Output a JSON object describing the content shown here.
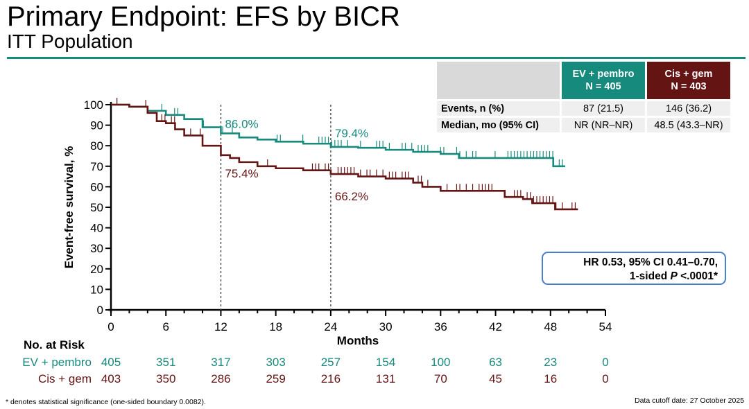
{
  "slide": {
    "title": "Primary Endpoint: EFS by BICR",
    "subtitle": "ITT Population"
  },
  "summary_table": {
    "columns": [
      {
        "label": "EV + pembro",
        "n": "N = 405",
        "color": "#178a7e"
      },
      {
        "label": "Cis + gem",
        "n": "N = 403",
        "color": "#651414"
      }
    ],
    "rows": [
      {
        "label": "Events, n (%)",
        "values": [
          "87 (21.5)",
          "146 (36.2)"
        ]
      },
      {
        "label": "Median, mo (95% CI)",
        "values": [
          "NR (NR–NR)",
          "48.5 (43.3–NR)"
        ]
      }
    ]
  },
  "hr_box": {
    "line1": "HR 0.53, 95% CI 0.41–0.70,",
    "line2_prefix": "1-sided ",
    "line2_p": "P",
    "line2_suffix": " <.0001*"
  },
  "chart_data": {
    "type": "line",
    "title": "Primary Endpoint: EFS by BICR",
    "xlabel": "Months",
    "ylabel": "Event-free survival, %",
    "xlim": [
      0,
      54
    ],
    "ylim": [
      0,
      100
    ],
    "xticks": [
      0,
      6,
      12,
      18,
      24,
      30,
      36,
      42,
      48,
      54
    ],
    "yticks": [
      0,
      10,
      20,
      30,
      40,
      50,
      60,
      70,
      80,
      90,
      100
    ],
    "reference_lines_x": [
      12,
      24
    ],
    "series": [
      {
        "name": "EV + pembro",
        "color": "#178a7e",
        "points": [
          [
            0,
            100
          ],
          [
            2,
            99
          ],
          [
            4,
            97
          ],
          [
            6,
            95
          ],
          [
            8,
            93
          ],
          [
            10,
            89
          ],
          [
            12,
            86
          ],
          [
            14,
            84
          ],
          [
            16,
            83
          ],
          [
            18,
            82
          ],
          [
            21,
            81
          ],
          [
            24,
            79.4
          ],
          [
            27,
            79
          ],
          [
            30,
            78
          ],
          [
            33,
            77
          ],
          [
            36,
            76
          ],
          [
            38,
            74
          ],
          [
            42,
            74
          ],
          [
            45,
            74
          ],
          [
            48,
            74
          ],
          [
            48.3,
            70
          ],
          [
            49.6,
            70
          ]
        ],
        "annotations": [
          {
            "x": 12,
            "label": "86.0%"
          },
          {
            "x": 24,
            "label": "79.4%"
          }
        ]
      },
      {
        "name": "Cis + gem",
        "color": "#651414",
        "points": [
          [
            0,
            100
          ],
          [
            2,
            99
          ],
          [
            4,
            96
          ],
          [
            5,
            92
          ],
          [
            6,
            91
          ],
          [
            7,
            88
          ],
          [
            8,
            85
          ],
          [
            10,
            80
          ],
          [
            12,
            75.4
          ],
          [
            13,
            74
          ],
          [
            14,
            72
          ],
          [
            16,
            70
          ],
          [
            18,
            69
          ],
          [
            21,
            68
          ],
          [
            24,
            66.2
          ],
          [
            27,
            65
          ],
          [
            30,
            64
          ],
          [
            33,
            62
          ],
          [
            34,
            60
          ],
          [
            36,
            58
          ],
          [
            40,
            58
          ],
          [
            42,
            58
          ],
          [
            43,
            55
          ],
          [
            45,
            54
          ],
          [
            46,
            52
          ],
          [
            48,
            52
          ],
          [
            48.5,
            49
          ],
          [
            51,
            49
          ]
        ],
        "annotations": [
          {
            "x": 12,
            "label": "75.4%"
          },
          {
            "x": 24,
            "label": "66.2%"
          }
        ]
      }
    ]
  },
  "at_risk": {
    "title": "No. at Risk",
    "months": [
      0,
      6,
      12,
      18,
      24,
      30,
      36,
      42,
      48,
      54
    ],
    "rows": [
      {
        "label": "EV + pembro",
        "color": "#178a7e",
        "values": [
          "405",
          "351",
          "317",
          "303",
          "257",
          "154",
          "100",
          "63",
          "23",
          "0"
        ]
      },
      {
        "label": "Cis + gem",
        "color": "#651414",
        "values": [
          "403",
          "350",
          "286",
          "259",
          "216",
          "131",
          "70",
          "45",
          "16",
          "0"
        ]
      }
    ]
  },
  "footnotes": {
    "left": "* denotes statistical significance (one-sided boundary 0.0082).",
    "right": "Data cutoff date: 27 October 2025"
  }
}
